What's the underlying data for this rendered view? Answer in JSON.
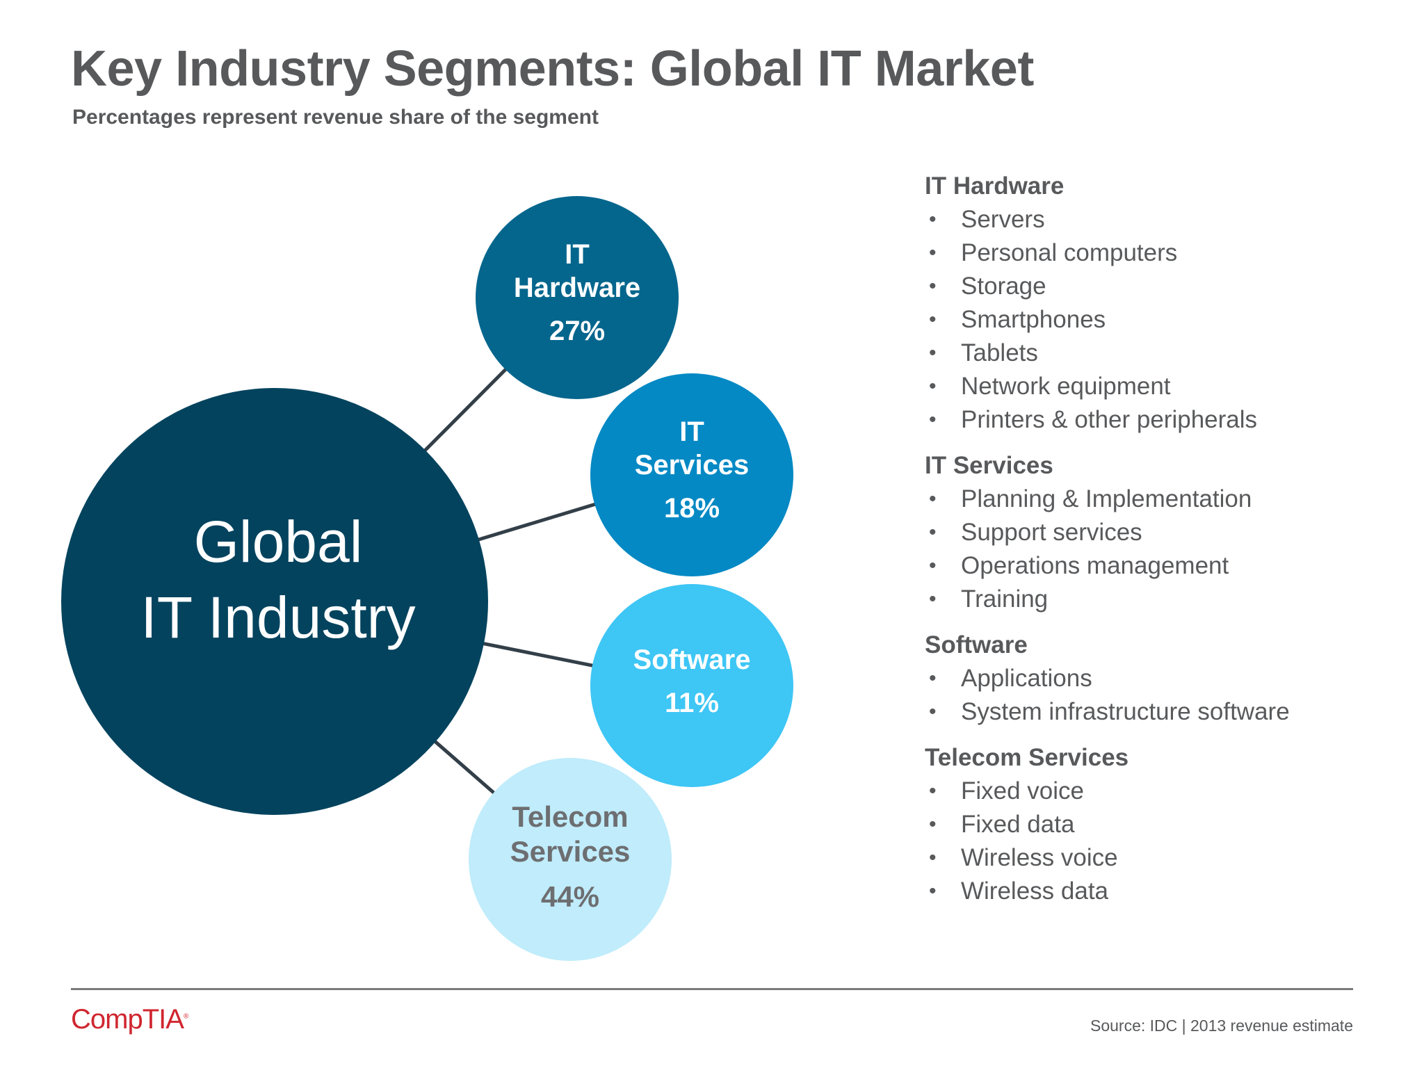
{
  "header": {
    "title": "Key Industry Segments: Global IT Market",
    "subtitle": "Percentages represent revenue share of the segment"
  },
  "diagram": {
    "hub": {
      "line1": "Global",
      "line2": "IT Industry",
      "color": "#03435e"
    },
    "segments": [
      {
        "name_line1": "IT",
        "name_line2": "Hardware",
        "share": "27%",
        "share_value": 27,
        "color": "#05668d",
        "text_color": "#ffffff"
      },
      {
        "name_line1": "IT",
        "name_line2": "Services",
        "share": "18%",
        "share_value": 18,
        "color": "#0489c4",
        "text_color": "#ffffff"
      },
      {
        "name_line1": "Software",
        "name_line2": "",
        "share": "11%",
        "share_value": 11,
        "color": "#3ec6f5",
        "text_color": "#ffffff"
      },
      {
        "name_line1": "Telecom",
        "name_line2": "Services",
        "share": "44%",
        "share_value": 44,
        "color": "#c0ecfb",
        "text_color": "#6d6e71"
      }
    ],
    "connector_color": "#333f48"
  },
  "legend": {
    "groups": [
      {
        "title": "IT Hardware",
        "items": [
          "Servers",
          "Personal computers",
          "Storage",
          "Smartphones",
          "Tablets",
          "Network equipment",
          "Printers & other peripherals"
        ]
      },
      {
        "title": "IT Services",
        "items": [
          "Planning & Implementation",
          "Support services",
          "Operations management",
          "Training"
        ]
      },
      {
        "title": "Software",
        "items": [
          "Applications",
          "System infrastructure software"
        ]
      },
      {
        "title": "Telecom Services",
        "items": [
          "Fixed voice",
          "Fixed data",
          "Wireless voice",
          "Wireless data"
        ]
      }
    ],
    "bullet": "•"
  },
  "footer": {
    "logo": "CompTIA",
    "source": "Source: IDC | 2013 revenue estimate"
  }
}
